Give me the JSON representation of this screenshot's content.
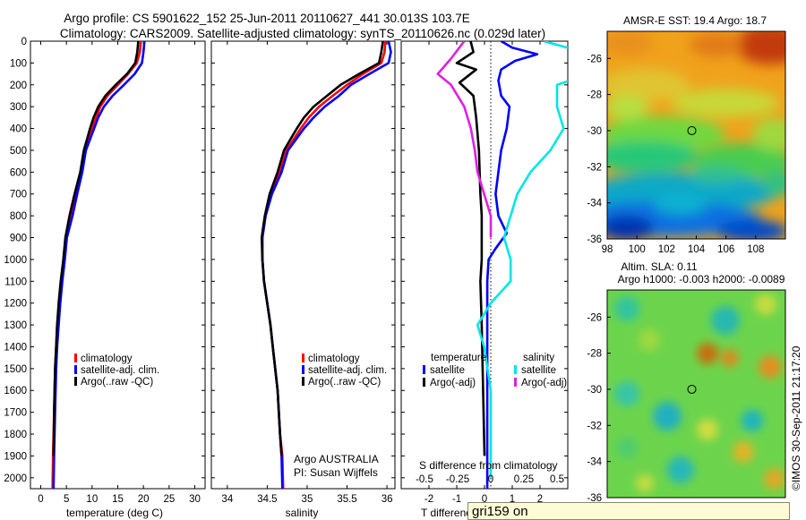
{
  "title": {
    "line1": "Argo profile: CS 5901622_152 25-Jun-2011 20110627_441 30.013S 103.7E",
    "line2": "Climatology: CARS2009. Satellite-adjusted climatology: synTS_20110626.nc (0.029d later)"
  },
  "colors": {
    "climatology": "#ff0000",
    "satellite": "#0000ff",
    "argo": "#000000",
    "sal_satellite": "#00e5e5",
    "sal_argo": "#e020e0"
  },
  "chart_data": [
    {
      "type": "line",
      "panel": "temperature",
      "xlabel": "temperature (deg C)",
      "xlim": [
        -2,
        32
      ],
      "xticks": [
        "0",
        "5",
        "10",
        "15",
        "20",
        "25",
        "30"
      ],
      "ylim": [
        0,
        2050
      ],
      "yticks": [
        "0",
        "100",
        "200",
        "300",
        "400",
        "500",
        "600",
        "700",
        "800",
        "900",
        "1000",
        "1100",
        "1200",
        "1300",
        "1400",
        "1500",
        "1600",
        "1700",
        "1800",
        "1900",
        "2000"
      ],
      "legend": [
        "climatology",
        "satellite-adj. clim.",
        "Argo(..raw -QC)"
      ],
      "series": [
        {
          "name": "climatology",
          "color": "#ff0000",
          "x": [
            19.5,
            19.3,
            18.7,
            17,
            15,
            13,
            11.6,
            10.8,
            10,
            9.4,
            8.6,
            7.9,
            6.8,
            5.8,
            4.9,
            4.5,
            4,
            3.6,
            3.2,
            3,
            2.8,
            2.6,
            2.4,
            2.3
          ],
          "y": [
            0,
            50,
            100,
            150,
            200,
            250,
            300,
            350,
            400,
            450,
            500,
            600,
            700,
            800,
            900,
            1000,
            1100,
            1200,
            1300,
            1400,
            1500,
            1700,
            1900,
            2050
          ]
        },
        {
          "name": "satellite-adj. clim.",
          "color": "#0000ff",
          "x": [
            20.2,
            20,
            19.7,
            18.3,
            16.2,
            14,
            12.3,
            11.2,
            10.4,
            9.6,
            8.8,
            8.1,
            7.1,
            6.2,
            5.1,
            4.7,
            4.2,
            3.8,
            3.5,
            3.2,
            3,
            2.8,
            2.6,
            2.5
          ],
          "y": [
            0,
            50,
            100,
            150,
            200,
            250,
            300,
            350,
            400,
            450,
            500,
            600,
            700,
            800,
            900,
            1000,
            1100,
            1200,
            1300,
            1400,
            1500,
            1700,
            1900,
            2050
          ]
        },
        {
          "name": "Argo(..raw -QC)",
          "color": "#000000",
          "x": [
            19,
            18.8,
            18.4,
            16.8,
            14.6,
            12.6,
            11.2,
            10.3,
            9.6,
            9,
            8.4,
            7.7,
            6.6,
            5.6,
            4.8,
            4.4,
            3.9,
            3.5,
            3.2,
            3,
            2.8,
            2.6,
            2.5
          ],
          "y": [
            0,
            50,
            100,
            150,
            200,
            250,
            300,
            350,
            400,
            450,
            500,
            600,
            700,
            800,
            900,
            1000,
            1100,
            1200,
            1300,
            1400,
            1500,
            1700,
            1900
          ]
        }
      ]
    },
    {
      "type": "line",
      "panel": "salinity",
      "xlabel": "salinity",
      "xlim": [
        33.8,
        36.1
      ],
      "xticks": [
        "34",
        "34.5",
        "35",
        "35.5",
        "36"
      ],
      "ylim": [
        0,
        2050
      ],
      "legend": [
        "climatology",
        "satellite-adj. clim.",
        "Argo(..raw -QC)"
      ],
      "annotation": [
        "Argo AUSTRALIA",
        "PI: Susan Wijffels"
      ],
      "series": [
        {
          "name": "climatology",
          "color": "#ff0000",
          "x": [
            35.98,
            35.97,
            35.93,
            35.7,
            35.5,
            35.32,
            35.15,
            35.02,
            34.92,
            34.83,
            34.74,
            34.66,
            34.55,
            34.48,
            34.44,
            34.44,
            34.46,
            34.5,
            34.54,
            34.57,
            34.6,
            34.63,
            34.66,
            34.69,
            34.7
          ],
          "y": [
            0,
            50,
            100,
            150,
            200,
            250,
            300,
            350,
            400,
            450,
            500,
            600,
            700,
            800,
            900,
            1000,
            1100,
            1200,
            1300,
            1400,
            1500,
            1600,
            1800,
            1900,
            2050
          ]
        },
        {
          "name": "satellite-adj. clim.",
          "color": "#0000ff",
          "x": [
            36.02,
            36.05,
            36.02,
            35.78,
            35.55,
            35.4,
            35.22,
            35.08,
            34.96,
            34.86,
            34.76,
            34.68,
            34.56,
            34.48,
            34.44,
            34.44,
            34.46,
            34.5,
            34.54,
            34.57,
            34.6,
            34.63,
            34.66,
            34.68,
            34.69
          ],
          "y": [
            0,
            50,
            100,
            150,
            200,
            250,
            300,
            350,
            400,
            450,
            500,
            600,
            700,
            800,
            900,
            1000,
            1100,
            1200,
            1300,
            1400,
            1500,
            1600,
            1800,
            1900,
            2050
          ]
        },
        {
          "name": "Argo(..raw -QC)",
          "color": "#000000",
          "x": [
            35.95,
            35.93,
            35.9,
            35.65,
            35.42,
            35.25,
            35.08,
            34.96,
            34.87,
            34.79,
            34.71,
            34.63,
            34.53,
            34.47,
            34.43,
            34.44,
            34.46,
            34.5,
            34.54,
            34.57,
            34.6,
            34.63,
            34.66,
            34.68
          ],
          "y": [
            0,
            50,
            100,
            150,
            200,
            250,
            300,
            350,
            400,
            450,
            500,
            600,
            700,
            800,
            900,
            1000,
            1100,
            1200,
            1300,
            1400,
            1500,
            1600,
            1800,
            1900
          ]
        }
      ]
    },
    {
      "type": "line",
      "panel": "differences",
      "xlabel": "T difference",
      "xlim": [
        -3,
        3
      ],
      "xticks": [
        "-2",
        "-1",
        "0",
        "1",
        "2"
      ],
      "xlabel2": "S difference from climatology",
      "xticks2": [
        "-0.5",
        "-0.25",
        "0",
        "0.25",
        "0.5"
      ],
      "ylim": [
        0,
        2050
      ],
      "legend_titles": [
        "temperature",
        "salinity"
      ],
      "legend": [
        "satellite",
        "Argo(-adj)",
        "satellite",
        "Argo(-adj)"
      ],
      "series": [
        {
          "name": "satellite",
          "group": "temperature",
          "color": "#0000ff",
          "x": [
            0.6,
            1,
            1.9,
            1.1,
            0.6,
            0.5,
            0.6,
            0.9,
            0.8,
            0.6,
            0.5,
            0.4,
            0.5,
            0.8,
            0.4,
            0.15,
            0.1,
            0.1,
            0.1,
            0.1,
            0.1,
            0.1,
            0.1,
            0.1,
            0.1,
            0.1
          ],
          "y": [
            0,
            30,
            60,
            90,
            130,
            180,
            250,
            300,
            400,
            500,
            600,
            700,
            800,
            880,
            950,
            1000,
            1100,
            1200,
            1300,
            1400,
            1500,
            1600,
            1700,
            1800,
            1900,
            2050
          ]
        },
        {
          "name": "Argo(-adj)",
          "group": "temperature",
          "color": "#000000",
          "x": [
            -0.5,
            -0.4,
            -1,
            -0.3,
            -0.9,
            -0.4,
            -0.3,
            -0.2,
            -0.15,
            -0.1,
            -0.1,
            -0.1,
            -0.1,
            -0.15,
            -0.1,
            0
          ],
          "y": [
            0,
            50,
            100,
            130,
            190,
            250,
            350,
            500,
            700,
            800,
            900,
            950,
            1000,
            1100,
            1300,
            1900
          ]
        },
        {
          "name": "satellite",
          "group": "salinity",
          "color": "#00e5e5",
          "x": [
            0.4,
            0.7,
            0.9,
            0.5,
            0.5,
            0.55,
            0.45,
            0.3,
            0.2,
            0.15,
            0.1,
            0.15,
            0.15,
            0,
            -0.1,
            -0.05,
            0,
            0,
            0
          ],
          "y": [
            0,
            50,
            120,
            200,
            300,
            400,
            500,
            600,
            700,
            800,
            900,
            1000,
            1100,
            1200,
            1300,
            1400,
            1600,
            1800,
            2000
          ]
        },
        {
          "name": "Argo(-adj)",
          "group": "salinity",
          "color": "#e020e0",
          "x": [
            -0.2,
            -0.3,
            -0.4,
            -0.3,
            -0.2,
            -0.15,
            -0.12,
            -0.1,
            -0.05,
            0,
            0,
            0
          ],
          "y": [
            0,
            80,
            150,
            200,
            300,
            400,
            500,
            600,
            700,
            800,
            850,
            900
          ]
        }
      ]
    },
    {
      "type": "heatmap",
      "panel": "sst_map",
      "title": "AMSR-E SST: 19.4  Argo: 18.7",
      "xlim": [
        98,
        110
      ],
      "ylim": [
        -36,
        -24.5
      ],
      "xticks": [
        "98",
        "100",
        "102",
        "104",
        "106",
        "108"
      ],
      "yticks": [
        "-26",
        "-28",
        "-30",
        "-32",
        "-34",
        "-36"
      ],
      "marker": {
        "lon": 103.7,
        "lat": -30
      }
    },
    {
      "type": "heatmap",
      "panel": "sla_map",
      "title": "Altim. SLA: 0.11",
      "title2": "Argo h1000: -0.003  h2000: -0.0089",
      "xlim": [
        98,
        110
      ],
      "ylim": [
        -36,
        -24.5
      ],
      "yticks": [
        "-26",
        "-28",
        "-30",
        "-32",
        "-34",
        "-36"
      ],
      "marker": {
        "lon": 103.7,
        "lat": -30
      }
    }
  ],
  "side_note": "©IMOS 30-Sep-2011 21:17:20",
  "tooltip": "gri159 on"
}
